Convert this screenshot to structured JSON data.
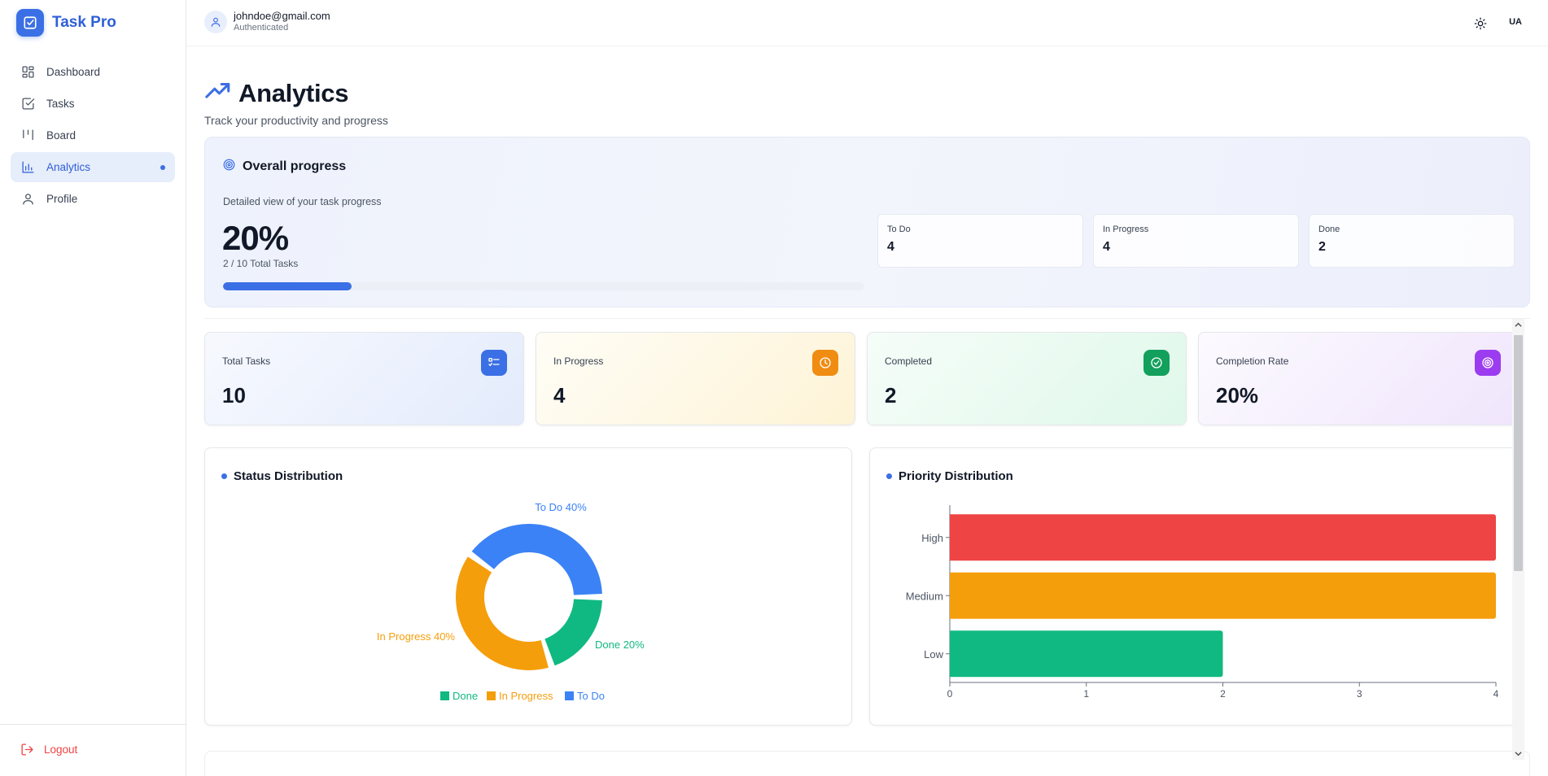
{
  "app": {
    "name": "Task Pro"
  },
  "sidebar": {
    "items": [
      {
        "label": "Dashboard",
        "icon": "dashboard-icon"
      },
      {
        "label": "Tasks",
        "icon": "tasks-icon"
      },
      {
        "label": "Board",
        "icon": "board-icon"
      },
      {
        "label": "Analytics",
        "icon": "analytics-icon",
        "active": true
      },
      {
        "label": "Profile",
        "icon": "profile-icon"
      }
    ],
    "logout_label": "Logout"
  },
  "topbar": {
    "email": "johndoe@gmail.com",
    "status": "Authenticated",
    "language": "UA"
  },
  "page": {
    "title": "Analytics",
    "subtitle": "Track your productivity and progress"
  },
  "overall": {
    "title": "Overall progress",
    "description": "Detailed view of your task progress",
    "percent": "20%",
    "percent_value": 20,
    "subtitle": "2 / 10 Total Tasks",
    "stats": [
      {
        "label": "To Do",
        "value": "4"
      },
      {
        "label": "In Progress",
        "value": "4"
      },
      {
        "label": "Done",
        "value": "2"
      }
    ]
  },
  "cards": [
    {
      "label": "Total Tasks",
      "value": "10",
      "icon": "list-icon",
      "color": "#3b6fe5"
    },
    {
      "label": "In Progress",
      "value": "4",
      "icon": "clock-icon",
      "color": "#f08c12"
    },
    {
      "label": "Completed",
      "value": "2",
      "icon": "check-circle-icon",
      "color": "#12a05c"
    },
    {
      "label": "Completion Rate",
      "value": "20%",
      "icon": "target-icon",
      "color": "#9b3cf0"
    }
  ],
  "colors": {
    "done": "#10b981",
    "in_progress": "#f59e0b",
    "to_do": "#3b82f6",
    "high": "#ef4444",
    "medium": "#f59e0b",
    "low": "#10b981",
    "accent": "#3b6fe5"
  },
  "chart_data": [
    {
      "type": "pie",
      "title": "Status Distribution",
      "categories": [
        "Done",
        "In Progress",
        "To Do"
      ],
      "values": [
        20,
        40,
        40
      ],
      "slice_labels": [
        "Done 20%",
        "In Progress 40%",
        "To Do 40%"
      ],
      "colors": [
        "#10b981",
        "#f59e0b",
        "#3b82f6"
      ],
      "donut": true,
      "legend": "bottom"
    },
    {
      "type": "bar",
      "orientation": "horizontal",
      "title": "Priority Distribution",
      "categories": [
        "High",
        "Medium",
        "Low"
      ],
      "values": [
        4,
        4,
        2
      ],
      "colors": [
        "#ef4444",
        "#f59e0b",
        "#10b981"
      ],
      "xlim": [
        0,
        4
      ],
      "xticks": [
        "0",
        "1",
        "2",
        "3",
        "4"
      ]
    }
  ]
}
